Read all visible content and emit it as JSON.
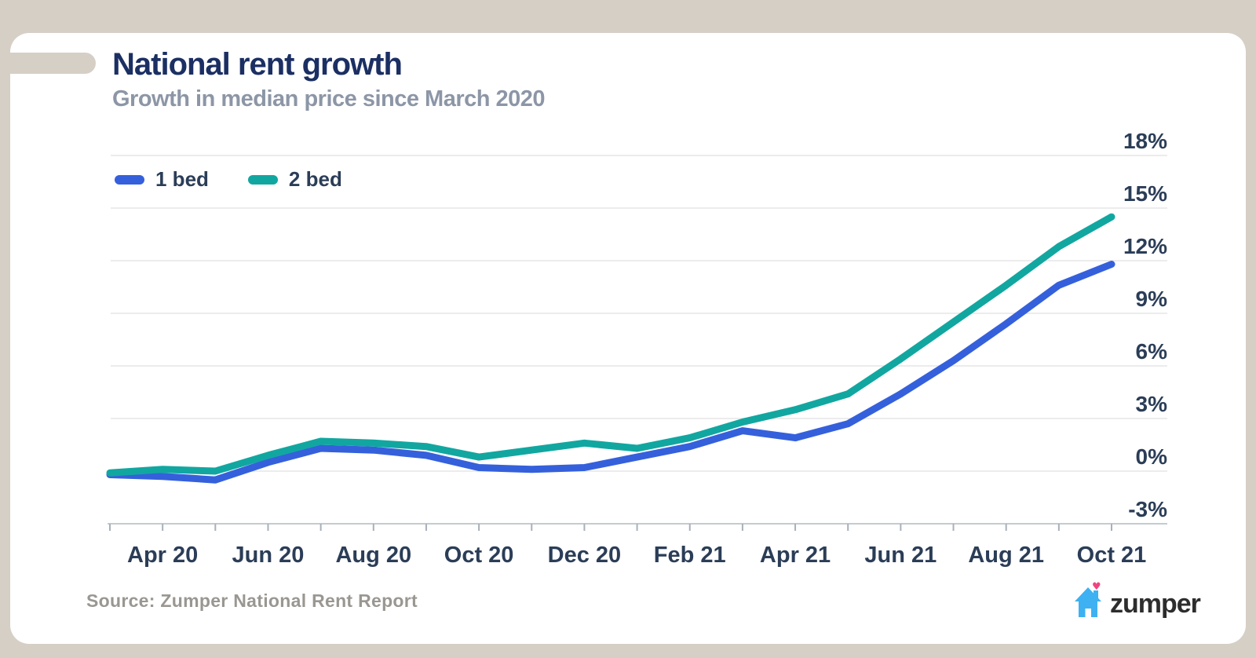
{
  "page": {
    "background_color": "#D6CFC6",
    "card_color": "#FFFFFF"
  },
  "header": {
    "title": "National rent growth",
    "subtitle": "Growth in median price since March 2020"
  },
  "legend": [
    {
      "label": "1 bed",
      "color": "#3560DC"
    },
    {
      "label": "2 bed",
      "color": "#11A7A0"
    }
  ],
  "footer": {
    "source": "Source: Zumper National Rent Report",
    "logo_text": "zumper",
    "logo_house_color": "#3EB1F2",
    "logo_heart_color": "#F0437F",
    "logo_heart_glyph": "♥"
  },
  "chart_data": {
    "type": "line",
    "x": [
      "Mar 20",
      "Apr 20",
      "May 20",
      "Jun 20",
      "Jul 20",
      "Aug 20",
      "Sep 20",
      "Oct 20",
      "Nov 20",
      "Dec 20",
      "Jan 21",
      "Feb 21",
      "Mar 21",
      "Apr 21",
      "May 21",
      "Jun 21",
      "Jul 21",
      "Aug 21",
      "Sep 21",
      "Oct 21"
    ],
    "x_tick_labels": [
      "Apr 20",
      "Jun 20",
      "Aug 20",
      "Oct 20",
      "Dec 20",
      "Feb 21",
      "Apr 21",
      "Jun 21",
      "Aug 21",
      "Oct 21"
    ],
    "series": [
      {
        "name": "1 bed",
        "color": "#3560DC",
        "values": [
          -0.2,
          -0.3,
          -0.5,
          0.5,
          1.3,
          1.2,
          0.9,
          0.2,
          0.1,
          0.2,
          0.8,
          1.4,
          2.3,
          1.9,
          2.7,
          4.4,
          6.3,
          8.4,
          10.6,
          11.8
        ]
      },
      {
        "name": "2 bed",
        "color": "#11A7A0",
        "values": [
          -0.1,
          0.1,
          0.0,
          0.9,
          1.7,
          1.6,
          1.4,
          0.8,
          1.2,
          1.6,
          1.3,
          1.9,
          2.8,
          3.5,
          4.4,
          6.4,
          8.5,
          10.6,
          12.8,
          14.5
        ]
      }
    ],
    "title": "National rent growth",
    "subtitle": "Growth in median price since March 2020",
    "xlabel": "",
    "ylabel": "",
    "ylim": [
      -3,
      18
    ],
    "y_ticks": [
      18,
      15,
      12,
      9,
      6,
      3,
      0,
      -3
    ],
    "y_tick_labels": [
      "18%",
      "15%",
      "12%",
      "9%",
      "6%",
      "3%",
      "0%",
      "-3%"
    ],
    "grid": "horizontal",
    "legend_position": "top-left-inside",
    "colors": {
      "gridline": "#ECECEC",
      "axis_line": "#C6CBD1",
      "tick": "#A8B0BA",
      "tick_label": "#2B3D57"
    }
  }
}
